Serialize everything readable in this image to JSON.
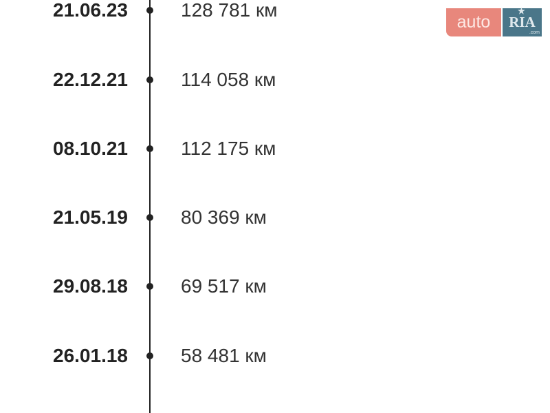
{
  "logo": {
    "auto": "auto",
    "ria": "RIA",
    "com": ".com"
  },
  "entries": [
    {
      "date": "21.06.23",
      "mileage": "128 781 км"
    },
    {
      "date": "22.12.21",
      "mileage": "114 058 км"
    },
    {
      "date": "08.10.21",
      "mileage": "112 175 км"
    },
    {
      "date": "21.05.19",
      "mileage": "80 369 км"
    },
    {
      "date": "29.08.18",
      "mileage": "69 517 км"
    },
    {
      "date": "26.01.18",
      "mileage": "58 481 км"
    }
  ]
}
